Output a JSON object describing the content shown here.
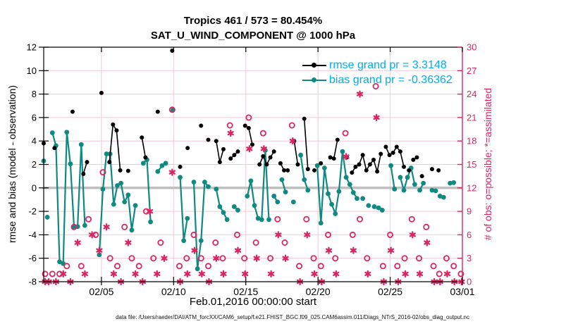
{
  "title": {
    "line1": "Tropics 461 / 573 = 80.454%",
    "line2": "SAT_U_WIND_COMPONENT @ 1000 hPa"
  },
  "xlabel": "Feb.01,2016 00:00:00 start",
  "footnote": "data file: /Users/raeder/DAI/ATM_forcXX/CAM6_setup/f.e21.FHIST_BGC.f09_025.CAM6assim.011/Diags_NTrS_2016-02/obs_diag_output.nc",
  "left_axis": {
    "label": "rmse and bias (model - observation)",
    "ticks": [
      12,
      10,
      8,
      6,
      4,
      2,
      0,
      -2,
      -4,
      -6,
      -8
    ],
    "min": -8,
    "max": 12,
    "color": "#000000"
  },
  "right_axis": {
    "label": "# of obs: o=possible; *=assimilated",
    "ticks": [
      30,
      27,
      24,
      21,
      18,
      15,
      12,
      9,
      6,
      3,
      0
    ],
    "min": 0,
    "max": 30,
    "color": "#d92662"
  },
  "x_axis": {
    "tick_labels": [
      "02/05",
      "02/10",
      "02/15",
      "02/20",
      "02/25",
      "03/01"
    ],
    "tick_days": [
      4,
      9,
      14,
      19,
      24,
      29
    ],
    "range_days": [
      0,
      29
    ],
    "start_label": "Feb.01,2016 00:00:00 start"
  },
  "legend": [
    {
      "label": "rmse grand pr = 3.3148",
      "color": "#000000"
    },
    {
      "label": "bias grand pr = -0.36362",
      "color": "#108980"
    }
  ],
  "colors": {
    "rmse": "#000000",
    "bias": "#108980",
    "obs": "#d92662",
    "legend_text": "#00aeef",
    "grid": "#f2c9d4",
    "zero_line": "#bfbfbf",
    "background": "#ffffff"
  },
  "chart_data": {
    "type": "line",
    "x_unit": "days since Feb 1, 2016 00:00",
    "x_range": [
      0,
      29
    ],
    "left_ylim": [
      -8,
      12
    ],
    "right_ylim": [
      0,
      30
    ],
    "grid": true,
    "legend_position": "upper right inside",
    "series": [
      {
        "name": "rmse",
        "axis": "left",
        "style": "line+dot",
        "color": "#000000",
        "grand_value": 3.3148,
        "points": [
          [
            0,
            3.8
          ],
          [
            0.75,
            3.4
          ],
          [
            2,
            6.5
          ],
          [
            2.75,
            1.2
          ],
          [
            3,
            2.2
          ],
          [
            4,
            8.1
          ],
          [
            4.55,
            2.2
          ],
          [
            4.8,
            5.4
          ],
          [
            5.05,
            4.9
          ],
          [
            5.3,
            1.5
          ],
          [
            5.85,
            1.45
          ],
          [
            6.8,
            4.3
          ],
          [
            7.05,
            2.6
          ],
          [
            7.9,
            6.5
          ],
          [
            8.9,
            11.7
          ],
          [
            9.45,
            1.8
          ],
          [
            9.97,
            3.4
          ],
          [
            10.9,
            5.3
          ],
          [
            11.4,
            4.1
          ],
          [
            11.95,
            4.0
          ],
          [
            12.2,
            2.2
          ],
          [
            12.45,
            3.3
          ],
          [
            12.95,
            2.5
          ],
          [
            13.2,
            2.8
          ],
          [
            13.45,
            3.1
          ],
          [
            13.95,
            5.3
          ],
          [
            14.2,
            5.1
          ],
          [
            14.45,
            3.7
          ],
          [
            14.95,
            2.0
          ],
          [
            15.2,
            2.7
          ],
          [
            15.45,
            2.0
          ],
          [
            15.7,
            2.6
          ],
          [
            15.95,
            3.1
          ],
          [
            16.4,
            2.1
          ],
          [
            16.65,
            1.5
          ],
          [
            16.9,
            1.5
          ],
          [
            17.35,
            4.0
          ],
          [
            17.6,
            2.0
          ],
          [
            18.05,
            5.9
          ],
          [
            18.3,
            1.6
          ],
          [
            18.75,
            1.5
          ],
          [
            19.2,
            2.1
          ],
          [
            19.85,
            2.6
          ],
          [
            20.1,
            2.5
          ],
          [
            20.35,
            4.1
          ],
          [
            21,
            2.6
          ],
          [
            21.35,
            1.3
          ],
          [
            21.6,
            1.8
          ],
          [
            21.85,
            2.0
          ],
          [
            22.1,
            2.8
          ],
          [
            22.35,
            1.5
          ],
          [
            22.6,
            2.0
          ],
          [
            22.85,
            2.4
          ],
          [
            23.1,
            1.4
          ],
          [
            23.35,
            2.9
          ],
          [
            23.7,
            3.5
          ],
          [
            23.95,
            2.8
          ],
          [
            24.2,
            3.0
          ],
          [
            24.45,
            3.5
          ],
          [
            24.7,
            3.1
          ],
          [
            24.95,
            1.8
          ],
          [
            25.3,
            1.5
          ],
          [
            25.6,
            2.4
          ],
          [
            25.85,
            2.6
          ],
          [
            26.2,
            1.0
          ],
          [
            26.9,
            1.6
          ],
          [
            27.35,
            1.5
          ]
        ]
      },
      {
        "name": "bias",
        "axis": "left",
        "style": "line+dot",
        "color": "#108980",
        "grand_value": -0.36362,
        "points": [
          [
            0,
            2.3
          ],
          [
            0.25,
            -2.5
          ],
          [
            0.6,
            4.7
          ],
          [
            0.85,
            3.6
          ],
          [
            1.1,
            -6.3
          ],
          [
            1.35,
            -6.45
          ],
          [
            1.6,
            4.75
          ],
          [
            1.85,
            2.05
          ],
          [
            2.1,
            -3.3
          ],
          [
            2.35,
            -3.3
          ],
          [
            2.6,
            3.7
          ],
          [
            2.85,
            -3.2
          ],
          [
            3.85,
            -5.7
          ],
          [
            4.1,
            -0.1
          ],
          [
            4.35,
            2.9
          ],
          [
            4.6,
            2.9
          ],
          [
            4.85,
            -1.4
          ],
          [
            5.1,
            0.2
          ],
          [
            5.35,
            0.4
          ],
          [
            5.6,
            -1.2
          ],
          [
            5.85,
            -0.6
          ],
          [
            6.1,
            -3.6
          ],
          [
            6.35,
            -1.5
          ],
          [
            6.9,
            2.1
          ],
          [
            7.15,
            2.4
          ],
          [
            7.4,
            -2.9
          ],
          [
            7.9,
            1.4
          ],
          [
            8.2,
            1.9
          ],
          [
            8.45,
            2.1
          ],
          [
            8.95,
            6.65
          ],
          [
            9.45,
            0.9
          ],
          [
            9.7,
            -4.5
          ],
          [
            9.95,
            -2.6
          ],
          [
            10.4,
            0.5
          ],
          [
            10.65,
            -6.9
          ],
          [
            10.9,
            -4.5
          ],
          [
            11.15,
            0.5
          ],
          [
            11.4,
            0.1
          ],
          [
            11.95,
            -0.1
          ],
          [
            12.2,
            -1.6
          ],
          [
            12.45,
            -2.1
          ],
          [
            12.7,
            -2.7
          ],
          [
            13.2,
            -1.6
          ],
          [
            13.45,
            -1.9
          ],
          [
            14.1,
            -0.7
          ],
          [
            14.35,
            0.6
          ],
          [
            14.6,
            -1.5
          ],
          [
            14.85,
            -2.6
          ],
          [
            15.1,
            -2.7
          ],
          [
            15.35,
            3.2
          ],
          [
            15.6,
            -2.7
          ],
          [
            15.95,
            -0.7
          ],
          [
            16.2,
            -1.2
          ],
          [
            16.5,
            0.7
          ],
          [
            16.75,
            -0.35
          ],
          [
            17.3,
            -1.2
          ],
          [
            17.8,
            2.8
          ],
          [
            18.05,
            0.7
          ],
          [
            18.3,
            -0.2
          ],
          [
            18.95,
            1.9
          ],
          [
            19.2,
            -3.0
          ],
          [
            19.45,
            1.7
          ],
          [
            19.7,
            -0.5
          ],
          [
            19.95,
            -1.4
          ],
          [
            20.2,
            -2.2
          ],
          [
            20.45,
            -0.3
          ],
          [
            20.7,
            3.1
          ],
          [
            20.95,
            0.9
          ],
          [
            21.2,
            0.3
          ],
          [
            21.45,
            -0.4
          ],
          [
            21.7,
            -0.9
          ],
          [
            22.1,
            -0.9
          ],
          [
            22.5,
            -1.5
          ],
          [
            22.9,
            -1.6
          ],
          [
            23.2,
            -1.7
          ],
          [
            23.45,
            -1.9
          ],
          [
            24.05,
            1.9
          ],
          [
            24.3,
            -0.1
          ],
          [
            24.7,
            0.9
          ],
          [
            24.95,
            -0.2
          ],
          [
            25.2,
            0.9
          ],
          [
            25.45,
            1.7
          ],
          [
            25.7,
            0.3
          ],
          [
            26.05,
            -0.2
          ],
          [
            26.3,
            0.4
          ],
          [
            26.9,
            -0.2
          ],
          [
            27.15,
            -0.25
          ],
          [
            27.45,
            -0.7
          ],
          [
            27.7,
            -0.8
          ],
          [
            28.15,
            0.4
          ],
          [
            28.4,
            0.45
          ]
        ]
      },
      {
        "name": "possible",
        "axis": "right",
        "style": "open-circle",
        "color": "#d92662",
        "points": [
          [
            0.1,
            1
          ],
          [
            0.6,
            1
          ],
          [
            1.1,
            1
          ],
          [
            1.6,
            2
          ],
          [
            2.1,
            7
          ],
          [
            2.6,
            2
          ],
          [
            3.1,
            8
          ],
          [
            3.6,
            6
          ],
          [
            4.1,
            14
          ],
          [
            4.6,
            3
          ],
          [
            5.1,
            2
          ],
          [
            5.6,
            7
          ],
          [
            6.1,
            3
          ],
          [
            6.6,
            2
          ],
          [
            7.1,
            9
          ],
          [
            7.6,
            3
          ],
          [
            8.1,
            5
          ],
          [
            8.9,
            22
          ],
          [
            9.4,
            2
          ],
          [
            9.9,
            3
          ],
          [
            10.4,
            6
          ],
          [
            10.9,
            3
          ],
          [
            11.4,
            2
          ],
          [
            11.9,
            5
          ],
          [
            12.4,
            3
          ],
          [
            12.9,
            20
          ],
          [
            13.4,
            6
          ],
          [
            13.9,
            3
          ],
          [
            14.2,
            21
          ],
          [
            14.7,
            5
          ],
          [
            15.2,
            19
          ],
          [
            15.7,
            3
          ],
          [
            16.2,
            8
          ],
          [
            16.7,
            5
          ],
          [
            17.2,
            20
          ],
          [
            17.7,
            2
          ],
          [
            18.2,
            8
          ],
          [
            18.7,
            3
          ],
          [
            19.2,
            2
          ],
          [
            19.7,
            6
          ],
          [
            20.2,
            3
          ],
          [
            20.9,
            19
          ],
          [
            21.4,
            6
          ],
          [
            21.9,
            8
          ],
          [
            22.4,
            3
          ],
          [
            23,
            25
          ],
          [
            23.5,
            2
          ],
          [
            24,
            6
          ],
          [
            24.5,
            2
          ],
          [
            25,
            3
          ],
          [
            25.5,
            8
          ],
          [
            26,
            3
          ],
          [
            26.5,
            7
          ],
          [
            27,
            2
          ],
          [
            27.4,
            1
          ],
          [
            27.9,
            3
          ],
          [
            28.4,
            2
          ],
          [
            28.9,
            1
          ]
        ]
      },
      {
        "name": "assimilated",
        "axis": "right",
        "style": "asterisk",
        "color": "#d92662",
        "points": [
          [
            0.1,
            0
          ],
          [
            0.35,
            0
          ],
          [
            0.85,
            0
          ],
          [
            1.35,
            1
          ],
          [
            1.85,
            0
          ],
          [
            2.35,
            5
          ],
          [
            2.85,
            1
          ],
          [
            3.35,
            6
          ],
          [
            3.85,
            4
          ],
          [
            4.35,
            7
          ],
          [
            4.85,
            1
          ],
          [
            5.35,
            0
          ],
          [
            5.85,
            5
          ],
          [
            6.35,
            1
          ],
          [
            6.85,
            0
          ],
          [
            7.35,
            9
          ],
          [
            7.85,
            1
          ],
          [
            8.35,
            3
          ],
          [
            8.9,
            14
          ],
          [
            9.45,
            0
          ],
          [
            9.95,
            1
          ],
          [
            10.45,
            4
          ],
          [
            10.95,
            1
          ],
          [
            11.45,
            0
          ],
          [
            11.95,
            3
          ],
          [
            12.45,
            1
          ],
          [
            12.95,
            19
          ],
          [
            13.45,
            4
          ],
          [
            13.95,
            1
          ],
          [
            14.25,
            17
          ],
          [
            14.75,
            3
          ],
          [
            15.25,
            17
          ],
          [
            15.75,
            1
          ],
          [
            16.25,
            6
          ],
          [
            16.75,
            3
          ],
          [
            17.25,
            18
          ],
          [
            17.75,
            0
          ],
          [
            18.25,
            6
          ],
          [
            18.75,
            1
          ],
          [
            19.25,
            0
          ],
          [
            19.75,
            4
          ],
          [
            20.25,
            1
          ],
          [
            20.95,
            16
          ],
          [
            21.45,
            4
          ],
          [
            21.9,
            24
          ],
          [
            22.45,
            1
          ],
          [
            23.05,
            21
          ],
          [
            23.55,
            0
          ],
          [
            24.05,
            4
          ],
          [
            24.55,
            0
          ],
          [
            25.05,
            1
          ],
          [
            25.55,
            6
          ],
          [
            26.05,
            1
          ],
          [
            26.55,
            5
          ],
          [
            27.05,
            0
          ],
          [
            27.45,
            0
          ],
          [
            27.95,
            1
          ],
          [
            28.45,
            0
          ],
          [
            28.95,
            0
          ]
        ]
      }
    ]
  }
}
